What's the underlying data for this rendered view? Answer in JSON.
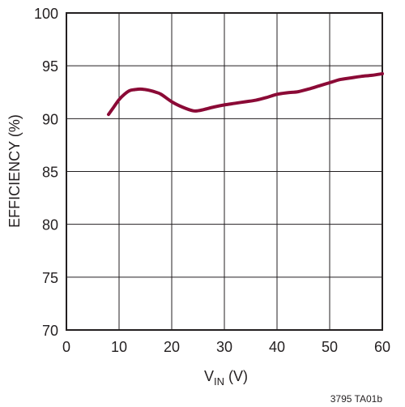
{
  "chart_data": {
    "type": "line",
    "xlabel": {
      "main": "V",
      "sub": "IN",
      "unit": " (V)"
    },
    "ylabel": "EFFICIENCY (%)",
    "xlim": [
      0,
      60
    ],
    "ylim": [
      70,
      100
    ],
    "x_ticks": [
      0,
      10,
      20,
      30,
      40,
      50,
      60
    ],
    "y_ticks": [
      70,
      75,
      80,
      85,
      90,
      95,
      100
    ],
    "grid": true,
    "figure_code": "3795 TA01b",
    "line_color": "#8b0a36",
    "series": [
      {
        "x": [
          8,
          9,
          10,
          11,
          12,
          13,
          14,
          15,
          16,
          17,
          18,
          20,
          22,
          24,
          25,
          26,
          28,
          30,
          32,
          34,
          36,
          38,
          40,
          42,
          44,
          46,
          48,
          50,
          52,
          54,
          56,
          58,
          60
        ],
        "y": [
          90.4,
          91.1,
          91.8,
          92.3,
          92.65,
          92.75,
          92.8,
          92.75,
          92.65,
          92.5,
          92.3,
          91.6,
          91.1,
          90.75,
          90.75,
          90.85,
          91.1,
          91.3,
          91.45,
          91.6,
          91.75,
          92.0,
          92.3,
          92.45,
          92.55,
          92.8,
          93.1,
          93.4,
          93.7,
          93.85,
          94.0,
          94.1,
          94.25
        ]
      }
    ]
  }
}
